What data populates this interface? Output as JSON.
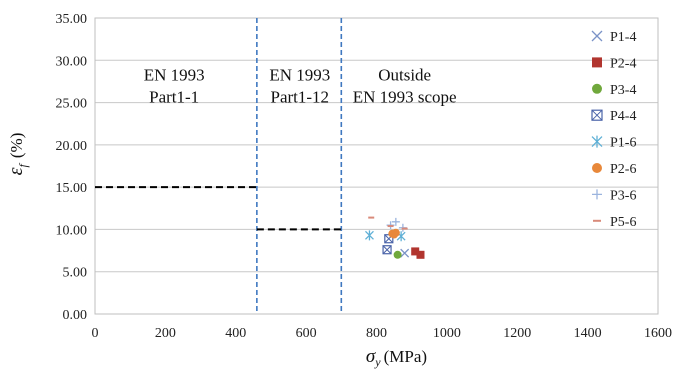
{
  "chart_data": {
    "type": "scatter",
    "title": "",
    "xlabel_symbol": "σ",
    "xlabel_subscript": "y",
    "xlabel_unit": "(MPa)",
    "ylabel_symbol": "ε",
    "ylabel_subscript": "f",
    "ylabel_unit": "(%)",
    "xlim": [
      0,
      1600
    ],
    "ylim": [
      0,
      35
    ],
    "xticks": [
      0,
      200,
      400,
      600,
      800,
      1000,
      1200,
      1400,
      1600
    ],
    "xtick_labels": [
      "0",
      "200",
      "400",
      "600",
      "800",
      "1000",
      "1200",
      "1400",
      "1600"
    ],
    "yticks": [
      0,
      5,
      10,
      15,
      20,
      25,
      30,
      35
    ],
    "ytick_labels": [
      "0.00",
      "5.00",
      "10.00",
      "15.00",
      "20.00",
      "25.00",
      "30.00",
      "35.00"
    ],
    "grid": "horizontal",
    "legend_position": "right",
    "regions": [
      {
        "lines": [
          "EN 1993",
          "Part1-1"
        ],
        "x_center": 225,
        "y": 27.6
      },
      {
        "lines": [
          "EN 1993",
          "Part1-12"
        ],
        "x_center": 582,
        "y": 27.6
      },
      {
        "lines": [
          "Outside",
          "EN 1993 scope"
        ],
        "x_center": 880,
        "y": 27.6
      }
    ],
    "boundaries": [
      {
        "x": 460,
        "color": "#3f78c0",
        "style": "dashed"
      },
      {
        "x": 700,
        "color": "#3f78c0",
        "style": "dashed"
      }
    ],
    "limit_lines": [
      {
        "x_start": 0,
        "x_end": 460,
        "y": 15,
        "color": "#000000",
        "style": "dashed"
      },
      {
        "x_start": 460,
        "x_end": 700,
        "y": 10,
        "color": "#000000",
        "style": "dashed"
      }
    ],
    "series": [
      {
        "name": "P1-4",
        "marker": "x",
        "color": "#7b93c7",
        "points": [
          [
            880,
            7.2
          ]
        ]
      },
      {
        "name": "P2-4",
        "marker": "square",
        "color": "#b1352f",
        "points": [
          [
            910,
            7.4
          ],
          [
            925,
            7.0
          ]
        ]
      },
      {
        "name": "P3-4",
        "marker": "circle",
        "color": "#70a83c",
        "points": [
          [
            860,
            7.0
          ]
        ]
      },
      {
        "name": "P4-4",
        "marker": "square-open-x",
        "color": "#4a63a8",
        "points": [
          [
            830,
            7.6
          ],
          [
            835,
            8.9
          ]
        ]
      },
      {
        "name": "P1-6",
        "marker": "asterisk",
        "color": "#5fb0d6",
        "points": [
          [
            780,
            9.3
          ],
          [
            870,
            9.2
          ]
        ]
      },
      {
        "name": "P2-6",
        "marker": "circle",
        "color": "#e8883a",
        "points": [
          [
            845,
            9.5
          ],
          [
            855,
            9.6
          ],
          [
            850,
            9.4
          ]
        ]
      },
      {
        "name": "P3-6",
        "marker": "plus",
        "color": "#9bb4de",
        "points": [
          [
            840,
            10.5
          ],
          [
            875,
            10.2
          ],
          [
            855,
            10.9
          ]
        ]
      },
      {
        "name": "P5-6",
        "marker": "dash",
        "color": "#d98a7a",
        "points": [
          [
            785,
            11.4
          ],
          [
            840,
            10.4
          ],
          [
            880,
            10.1
          ]
        ]
      }
    ]
  }
}
